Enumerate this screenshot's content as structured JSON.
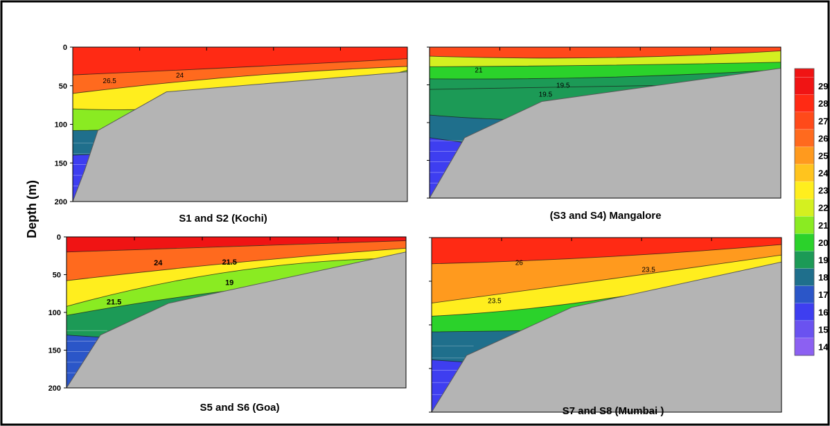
{
  "figure": {
    "ylabel": "Depth (m)",
    "colorbar": {
      "min": 14,
      "max": 30,
      "ticks": [
        "29",
        "28",
        "27",
        "26",
        "25",
        "24",
        "23",
        "22",
        "21",
        "20",
        "19",
        "18",
        "17",
        "16",
        "15",
        "14"
      ],
      "stops": [
        {
          "v": 14,
          "c": "#a86cf0"
        },
        {
          "v": 15,
          "c": "#8c60f2"
        },
        {
          "v": 16,
          "c": "#6a52f0"
        },
        {
          "v": 17,
          "c": "#3e3ef0"
        },
        {
          "v": 18,
          "c": "#2b56c8"
        },
        {
          "v": 19,
          "c": "#1f6f8c"
        },
        {
          "v": 20,
          "c": "#1c9a56"
        },
        {
          "v": 21,
          "c": "#2bd22b"
        },
        {
          "v": 22,
          "c": "#8aeb22"
        },
        {
          "v": 23,
          "c": "#d4f020"
        },
        {
          "v": 24,
          "c": "#ffee1e"
        },
        {
          "v": 25,
          "c": "#ffc41e"
        },
        {
          "v": 26,
          "c": "#ff9a1e"
        },
        {
          "v": 27,
          "c": "#ff6a1e"
        },
        {
          "v": 28,
          "c": "#ff4a1a"
        },
        {
          "v": 29,
          "c": "#ff2a14"
        },
        {
          "v": 30,
          "c": "#f01414"
        }
      ]
    }
  },
  "chart_data": [
    {
      "type": "heatmap",
      "title": "S1 and S2 (Kochi)",
      "ylim": [
        0,
        200
      ],
      "yticks": [
        "0",
        "50",
        "100",
        "150",
        "200"
      ],
      "surface_temp": 29.2,
      "layers": [
        {
          "temp": 26.5,
          "depth": [
            36,
            26,
            15
          ]
        },
        {
          "temp": 24,
          "depth": [
            60,
            38,
            25
          ]
        },
        {
          "temp": 21.5,
          "depth": [
            80,
            72,
            30
          ]
        },
        {
          "temp": 19,
          "depth": [
            108,
            100,
            80
          ]
        },
        {
          "temp": 17,
          "depth": [
            140,
            130,
            120
          ]
        },
        {
          "temp": 15,
          "depth": [
            200,
            200,
            200
          ]
        }
      ],
      "bottom_profile": [
        {
          "x": 0.0,
          "d": 200
        },
        {
          "x": 0.035,
          "d": 160
        },
        {
          "x": 0.075,
          "d": 108
        },
        {
          "x": 0.28,
          "d": 58
        },
        {
          "x": 1.0,
          "d": 32
        }
      ],
      "contour_labels": [
        {
          "text": "26.5",
          "x": 0.11,
          "d": 43
        },
        {
          "text": "24",
          "x": 0.32,
          "d": 36
        }
      ]
    },
    {
      "type": "heatmap",
      "title": "(S3 and S4)  Mangalore",
      "ylim": [
        0,
        200
      ],
      "yticks": [],
      "surface_temp": 28.0,
      "layers": [
        {
          "temp": 22.5,
          "depth": [
            12,
            14,
            5
          ]
        },
        {
          "temp": 21,
          "depth": [
            26,
            24,
            20
          ]
        },
        {
          "temp": 20,
          "depth": [
            42,
            40,
            30
          ]
        },
        {
          "temp": 19.5,
          "depth": [
            56,
            52,
            48
          ]
        },
        {
          "temp": 19,
          "depth": [
            90,
            95,
            70
          ]
        },
        {
          "temp": 17,
          "depth": [
            120,
            140,
            130
          ]
        },
        {
          "temp": 15,
          "depth": [
            200,
            200,
            200
          ]
        }
      ],
      "bottom_profile": [
        {
          "x": 0.0,
          "d": 200
        },
        {
          "x": 0.1,
          "d": 120
        },
        {
          "x": 0.32,
          "d": 72
        },
        {
          "x": 1.0,
          "d": 28
        }
      ],
      "contour_labels": [
        {
          "text": "21",
          "x": 0.14,
          "d": 30
        },
        {
          "text": "19.5",
          "x": 0.38,
          "d": 50
        },
        {
          "text": "19.5",
          "x": 0.33,
          "d": 62
        }
      ]
    },
    {
      "type": "heatmap",
      "title": "S5 and S6 (Goa)",
      "ylim": [
        0,
        200
      ],
      "yticks": [
        "0",
        "50",
        "100",
        "150",
        "200"
      ],
      "surface_temp": 29.6,
      "layers": [
        {
          "temp": 27,
          "depth": [
            20,
            12,
            5
          ]
        },
        {
          "temp": 24,
          "depth": [
            58,
            34,
            15
          ]
        },
        {
          "temp": 21.5,
          "depth": [
            92,
            45,
            28
          ]
        },
        {
          "temp": 20,
          "depth": [
            104,
            70,
            50
          ]
        },
        {
          "temp": 18,
          "depth": [
            130,
            140,
            140
          ]
        },
        {
          "temp": 16,
          "depth": [
            200,
            200,
            200
          ]
        }
      ],
      "bottom_profile": [
        {
          "x": 0.0,
          "d": 200
        },
        {
          "x": 0.1,
          "d": 130
        },
        {
          "x": 0.3,
          "d": 88
        },
        {
          "x": 1.0,
          "d": 20
        }
      ],
      "contour_labels": [
        {
          "text": "24",
          "x": 0.27,
          "d": 34
        },
        {
          "text": "21.5",
          "x": 0.48,
          "d": 33
        },
        {
          "text": "21.5",
          "x": 0.14,
          "d": 86
        },
        {
          "text": "19",
          "x": 0.48,
          "d": 60
        }
      ]
    },
    {
      "type": "heatmap",
      "title": "S7 and S8 (Mumbai )",
      "ylim": [
        0,
        200
      ],
      "yticks": [],
      "surface_temp": 29.2,
      "layers": [
        {
          "temp": 26,
          "depth": [
            30,
            22,
            8
          ]
        },
        {
          "temp": 23.5,
          "depth": [
            75,
            48,
            20
          ]
        },
        {
          "temp": 21,
          "depth": [
            90,
            70,
            30
          ]
        },
        {
          "temp": 19,
          "depth": [
            108,
            105,
            100
          ]
        },
        {
          "temp": 17,
          "depth": [
            140,
            150,
            150
          ]
        },
        {
          "temp": 15,
          "depth": [
            200,
            200,
            200
          ]
        }
      ],
      "bottom_profile": [
        {
          "x": 0.0,
          "d": 200
        },
        {
          "x": 0.1,
          "d": 135
        },
        {
          "x": 0.4,
          "d": 80
        },
        {
          "x": 1.0,
          "d": 28
        }
      ],
      "contour_labels": [
        {
          "text": "26",
          "x": 0.25,
          "d": 28
        },
        {
          "text": "23.5",
          "x": 0.62,
          "d": 36
        },
        {
          "text": "23.5",
          "x": 0.18,
          "d": 72
        }
      ]
    }
  ]
}
